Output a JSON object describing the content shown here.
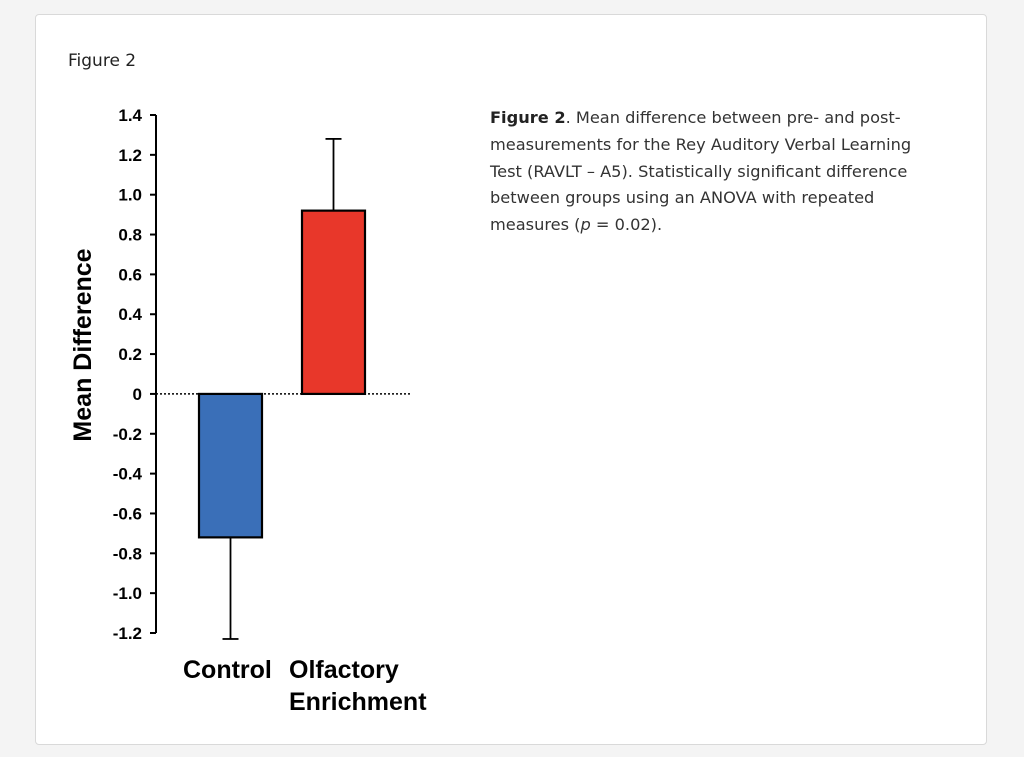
{
  "figure_label": "Figure 2",
  "caption": {
    "title": "Figure 2",
    "text_before_p": ". Mean difference between pre- and post-measurements for the Rey Auditory Verbal Learning Test (RAVLT – A5). Statistically significant difference between groups using an ANOVA with repeated measures (",
    "p_symbol": "p",
    "text_after_p": " = 0.02)."
  },
  "chart_data": {
    "type": "bar",
    "categories": [
      "Control",
      "Olfactory Enrichment"
    ],
    "category_label_lines": [
      [
        "Control"
      ],
      [
        "Olfactory",
        "Enrichment"
      ]
    ],
    "values": [
      -0.72,
      0.92
    ],
    "error_bars": [
      0.51,
      0.36
    ],
    "colors": [
      "#3a6fb8",
      "#e8372a"
    ],
    "ylabel": "Mean Difference",
    "xlabel": "",
    "ylim": [
      -1.2,
      1.4
    ],
    "yticks": [
      1.4,
      1.2,
      1.0,
      0.8,
      0.6,
      0.4,
      0.2,
      0,
      -0.2,
      -0.4,
      -0.6,
      -0.8,
      -1.0,
      -1.2
    ],
    "ytick_labels": [
      "1.4",
      "1.2",
      "1.0",
      "0.8",
      "0.6",
      "0.4",
      "0.2",
      "0",
      "-0.2",
      "-0.4",
      "-0.6",
      "-0.8",
      "-1.0",
      "-1.2"
    ],
    "zero_line": "dotted",
    "grid": false,
    "legend": "none"
  }
}
